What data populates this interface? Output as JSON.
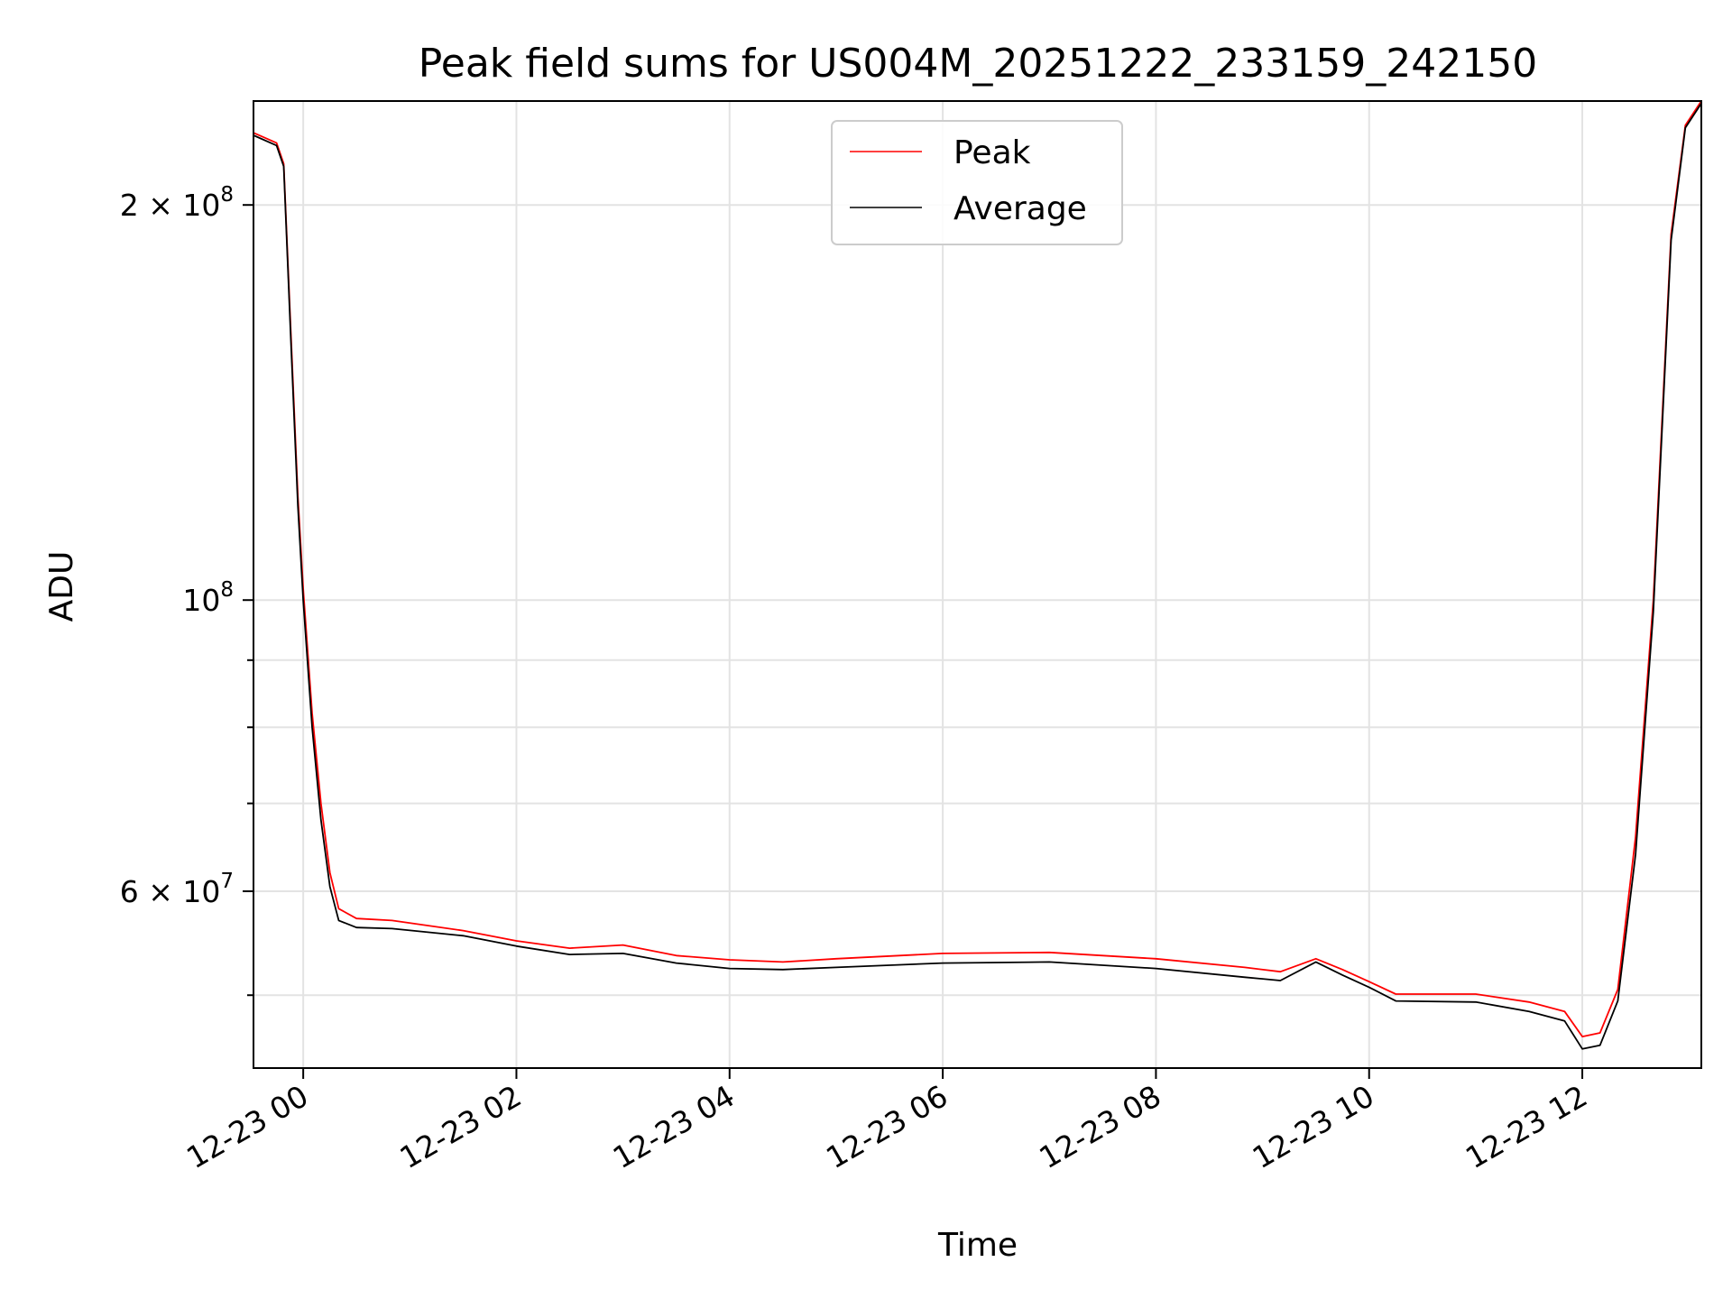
{
  "chart_data": {
    "type": "line",
    "title": "Peak field sums for US004M_20251222_233159_242150",
    "xlabel": "Time",
    "ylabel": "ADU",
    "x_axis": {
      "type": "datetime",
      "range": [
        "2025-12-22 23:32",
        "2025-12-23 13:07"
      ],
      "ticks": [
        {
          "value": "2025-12-23 00:00",
          "label": "12-23 00"
        },
        {
          "value": "2025-12-23 02:00",
          "label": "12-23 02"
        },
        {
          "value": "2025-12-23 04:00",
          "label": "12-23 04"
        },
        {
          "value": "2025-12-23 06:00",
          "label": "12-23 06"
        },
        {
          "value": "2025-12-23 08:00",
          "label": "12-23 08"
        },
        {
          "value": "2025-12-23 10:00",
          "label": "12-23 10"
        },
        {
          "value": "2025-12-23 12:00",
          "label": "12-23 12"
        }
      ]
    },
    "y_axis": {
      "scale": "log",
      "range": [
        44000000,
        240000000
      ],
      "major_ticks": [
        {
          "value": 60000000,
          "label_base": "6 × 10",
          "label_exp": "7"
        },
        {
          "value": 100000000,
          "label_base": "10",
          "label_exp": "8"
        },
        {
          "value": 200000000,
          "label_base": "2 × 10",
          "label_exp": "8"
        }
      ],
      "minor_ticks": [
        50000000,
        70000000,
        80000000,
        90000000
      ]
    },
    "grid": true,
    "legend": {
      "placement": "upper center"
    },
    "series": [
      {
        "name": "Peak",
        "color": "#ff0000",
        "points": [
          [
            "2025-12-22 23:32",
            227000000
          ],
          [
            "2025-12-22 23:45",
            223000000
          ],
          [
            "2025-12-22 23:49",
            215000000
          ],
          [
            "2025-12-22 23:53",
            160000000
          ],
          [
            "2025-12-22 23:57",
            120000000
          ],
          [
            "2025-12-23 00:00",
            102000000
          ],
          [
            "2025-12-23 00:05",
            82000000
          ],
          [
            "2025-12-23 00:10",
            70000000
          ],
          [
            "2025-12-23 00:15",
            62000000
          ],
          [
            "2025-12-23 00:20",
            58200000
          ],
          [
            "2025-12-23 00:30",
            57200000
          ],
          [
            "2025-12-23 00:50",
            57000000
          ],
          [
            "2025-12-23 01:30",
            56000000
          ],
          [
            "2025-12-23 02:00",
            55000000
          ],
          [
            "2025-12-23 02:30",
            54300000
          ],
          [
            "2025-12-23 03:00",
            54600000
          ],
          [
            "2025-12-23 03:30",
            53600000
          ],
          [
            "2025-12-23 04:00",
            53200000
          ],
          [
            "2025-12-23 04:30",
            53000000
          ],
          [
            "2025-12-23 05:00",
            53300000
          ],
          [
            "2025-12-23 06:00",
            53800000
          ],
          [
            "2025-12-23 07:00",
            53900000
          ],
          [
            "2025-12-23 08:00",
            53300000
          ],
          [
            "2025-12-23 08:50",
            52500000
          ],
          [
            "2025-12-23 09:10",
            52100000
          ],
          [
            "2025-12-23 09:30",
            53300000
          ],
          [
            "2025-12-23 09:45",
            52300000
          ],
          [
            "2025-12-23 10:00",
            51200000
          ],
          [
            "2025-12-23 10:15",
            50100000
          ],
          [
            "2025-12-23 11:00",
            50100000
          ],
          [
            "2025-12-23 11:30",
            49400000
          ],
          [
            "2025-12-23 11:50",
            48600000
          ],
          [
            "2025-12-23 12:00",
            46500000
          ],
          [
            "2025-12-23 12:10",
            46800000
          ],
          [
            "2025-12-23 12:20",
            50500000
          ],
          [
            "2025-12-23 12:30",
            66000000
          ],
          [
            "2025-12-23 12:40",
            100000000
          ],
          [
            "2025-12-23 12:50",
            190000000
          ],
          [
            "2025-12-23 12:58",
            230000000
          ],
          [
            "2025-12-23 13:07",
            240000000
          ]
        ]
      },
      {
        "name": "Average",
        "color": "#000000",
        "points": [
          [
            "2025-12-22 23:32",
            226000000
          ],
          [
            "2025-12-22 23:45",
            222000000
          ],
          [
            "2025-12-22 23:49",
            214000000
          ],
          [
            "2025-12-22 23:53",
            158000000
          ],
          [
            "2025-12-22 23:57",
            118000000
          ],
          [
            "2025-12-23 00:00",
            100000000
          ],
          [
            "2025-12-23 00:05",
            80000000
          ],
          [
            "2025-12-23 00:10",
            68000000
          ],
          [
            "2025-12-23 00:15",
            60500000
          ],
          [
            "2025-12-23 00:20",
            57000000
          ],
          [
            "2025-12-23 00:30",
            56300000
          ],
          [
            "2025-12-23 00:50",
            56200000
          ],
          [
            "2025-12-23 01:30",
            55500000
          ],
          [
            "2025-12-23 02:00",
            54500000
          ],
          [
            "2025-12-23 02:30",
            53700000
          ],
          [
            "2025-12-23 03:00",
            53800000
          ],
          [
            "2025-12-23 03:30",
            52900000
          ],
          [
            "2025-12-23 04:00",
            52400000
          ],
          [
            "2025-12-23 04:30",
            52300000
          ],
          [
            "2025-12-23 05:00",
            52500000
          ],
          [
            "2025-12-23 06:00",
            52900000
          ],
          [
            "2025-12-23 07:00",
            53000000
          ],
          [
            "2025-12-23 08:00",
            52400000
          ],
          [
            "2025-12-23 08:50",
            51600000
          ],
          [
            "2025-12-23 09:10",
            51300000
          ],
          [
            "2025-12-23 09:30",
            53000000
          ],
          [
            "2025-12-23 09:45",
            51800000
          ],
          [
            "2025-12-23 10:00",
            50700000
          ],
          [
            "2025-12-23 10:15",
            49500000
          ],
          [
            "2025-12-23 11:00",
            49400000
          ],
          [
            "2025-12-23 11:30",
            48600000
          ],
          [
            "2025-12-23 11:50",
            47800000
          ],
          [
            "2025-12-23 12:00",
            45500000
          ],
          [
            "2025-12-23 12:10",
            45800000
          ],
          [
            "2025-12-23 12:20",
            49500000
          ],
          [
            "2025-12-23 12:30",
            64000000
          ],
          [
            "2025-12-23 12:40",
            98000000
          ],
          [
            "2025-12-23 12:50",
            188000000
          ],
          [
            "2025-12-23 12:58",
            229000000
          ],
          [
            "2025-12-23 13:07",
            239000000
          ]
        ]
      }
    ]
  }
}
